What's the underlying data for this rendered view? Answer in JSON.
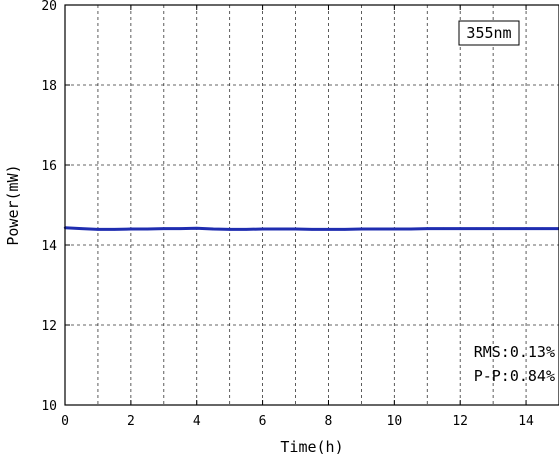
{
  "chart_data": {
    "type": "line",
    "title": "",
    "xlabel": "Time(h)",
    "ylabel": "Power(mW)",
    "xlim": [
      0,
      15
    ],
    "ylim": [
      10,
      20
    ],
    "xticks": [
      "0",
      "2",
      "4",
      "6",
      "8",
      "10",
      "12",
      "14"
    ],
    "yticks": [
      "10",
      "12",
      "14",
      "16",
      "18",
      "20"
    ],
    "grid": true,
    "series": [
      {
        "color": "#1f2db0",
        "x": [
          0,
          0.5,
          1,
          1.5,
          2,
          2.5,
          3,
          3.5,
          4,
          4.5,
          5,
          5.5,
          6,
          6.5,
          7,
          7.5,
          8,
          8.5,
          9,
          9.5,
          10,
          10.5,
          11,
          11.5,
          12,
          12.5,
          13,
          13.5,
          14,
          14.5,
          15
        ],
        "y": [
          14.43,
          14.41,
          14.39,
          14.39,
          14.4,
          14.4,
          14.41,
          14.41,
          14.42,
          14.4,
          14.39,
          14.39,
          14.4,
          14.4,
          14.4,
          14.39,
          14.39,
          14.39,
          14.4,
          14.4,
          14.4,
          14.4,
          14.41,
          14.41,
          14.41,
          14.41,
          14.41,
          14.41,
          14.41,
          14.41,
          14.41
        ]
      }
    ],
    "annotations": {
      "wavelength": "355nm",
      "rms": "RMS:0.13%",
      "pp": "P-P:0.84%"
    }
  }
}
